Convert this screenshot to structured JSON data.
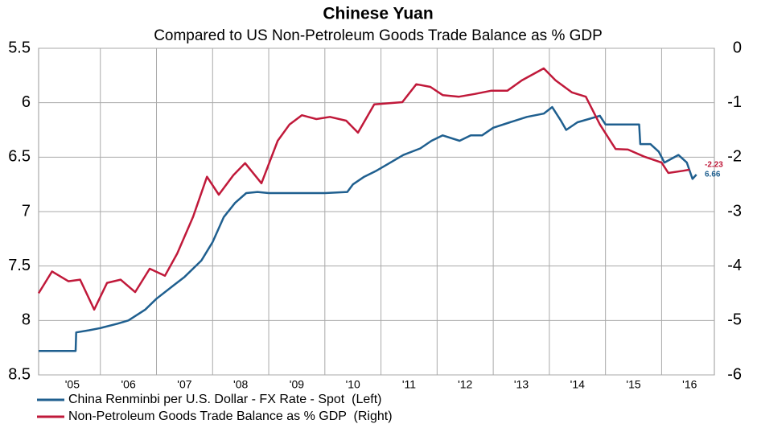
{
  "chart_data": {
    "type": "line",
    "title": "Chinese Yuan",
    "subtitle": "Compared to US Non-Petroleum Goods Trade Balance as % GDP",
    "xlim": [
      2004.9,
      2016.94
    ],
    "xticks": [
      {
        "value": 2005.5,
        "label": "'05"
      },
      {
        "value": 2006.5,
        "label": "'06"
      },
      {
        "value": 2007.5,
        "label": "'07"
      },
      {
        "value": 2008.5,
        "label": "'08"
      },
      {
        "value": 2009.5,
        "label": "'09"
      },
      {
        "value": 2010.5,
        "label": "'10"
      },
      {
        "value": 2011.5,
        "label": "'11"
      },
      {
        "value": 2012.5,
        "label": "'12"
      },
      {
        "value": 2013.5,
        "label": "'13"
      },
      {
        "value": 2014.5,
        "label": "'14"
      },
      {
        "value": 2015.5,
        "label": "'15"
      },
      {
        "value": 2016.5,
        "label": "'16"
      }
    ],
    "ylim": [
      5.5,
      8.5
    ],
    "yticks": [
      5.5,
      6,
      6.5,
      7,
      7.5,
      8,
      8.5
    ],
    "y_inverted": true,
    "y2lim": [
      0,
      -6
    ],
    "y2ticks": [
      0,
      -1,
      -2,
      -3,
      -4,
      -5,
      -6
    ],
    "grid": true,
    "legend": "bottom",
    "series": [
      {
        "name": "China Renminbi per U.S. Dollar - FX Rate - Spot  (Left)",
        "color": "#1f5f8f",
        "axis": "y",
        "x": [
          2004.9,
          2005.56,
          2005.57,
          2005.8,
          2006.0,
          2006.3,
          2006.5,
          2006.8,
          2007.0,
          2007.3,
          2007.5,
          2007.8,
          2008.0,
          2008.2,
          2008.4,
          2008.6,
          2008.8,
          2009.0,
          2009.5,
          2010.0,
          2010.4,
          2010.5,
          2010.7,
          2010.9,
          2011.1,
          2011.4,
          2011.7,
          2011.9,
          2012.1,
          2012.4,
          2012.6,
          2012.8,
          2013.0,
          2013.3,
          2013.6,
          2013.9,
          2014.05,
          2014.2,
          2014.3,
          2014.5,
          2014.7,
          2014.9,
          2015.0,
          2015.3,
          2015.6,
          2015.62,
          2015.8,
          2015.95,
          2016.05,
          2016.3,
          2016.45,
          2016.55,
          2016.62
        ],
        "values": [
          8.28,
          8.28,
          8.11,
          8.09,
          8.07,
          8.03,
          8.0,
          7.9,
          7.8,
          7.68,
          7.6,
          7.45,
          7.28,
          7.05,
          6.92,
          6.83,
          6.82,
          6.83,
          6.83,
          6.83,
          6.82,
          6.75,
          6.68,
          6.63,
          6.57,
          6.48,
          6.42,
          6.35,
          6.3,
          6.35,
          6.3,
          6.3,
          6.23,
          6.18,
          6.13,
          6.1,
          6.04,
          6.16,
          6.25,
          6.18,
          6.15,
          6.12,
          6.2,
          6.2,
          6.2,
          6.38,
          6.38,
          6.45,
          6.55,
          6.48,
          6.55,
          6.7,
          6.66
        ]
      },
      {
        "name": "Non-Petroleum Goods Trade Balance as % GDP  (Right)",
        "color": "#c0193a",
        "axis": "y2",
        "x": [
          2004.9,
          2005.14,
          2005.43,
          2005.64,
          2005.89,
          2006.12,
          2006.36,
          2006.62,
          2006.88,
          2007.15,
          2007.37,
          2007.65,
          2007.9,
          2008.11,
          2008.37,
          2008.58,
          2008.87,
          2009.16,
          2009.37,
          2009.59,
          2009.85,
          2010.09,
          2010.38,
          2010.59,
          2010.88,
          2011.38,
          2011.63,
          2011.88,
          2012.1,
          2012.39,
          2012.67,
          2012.96,
          2013.25,
          2013.51,
          2013.9,
          2014.11,
          2014.4,
          2014.65,
          2014.9,
          2015.18,
          2015.4,
          2015.69,
          2016.0,
          2016.12,
          2016.38,
          2016.5
        ],
        "values": [
          -4.5,
          -4.1,
          -4.28,
          -4.25,
          -4.8,
          -4.31,
          -4.25,
          -4.48,
          -4.05,
          -4.18,
          -3.77,
          -3.1,
          -2.36,
          -2.69,
          -2.33,
          -2.11,
          -2.48,
          -1.7,
          -1.4,
          -1.23,
          -1.3,
          -1.26,
          -1.33,
          -1.55,
          -1.03,
          -0.99,
          -0.66,
          -0.71,
          -0.86,
          -0.89,
          -0.84,
          -0.78,
          -0.78,
          -0.59,
          -0.37,
          -0.59,
          -0.81,
          -0.89,
          -1.4,
          -1.85,
          -1.86,
          -1.99,
          -2.1,
          -2.29,
          -2.25,
          -2.23
        ]
      }
    ]
  }
}
